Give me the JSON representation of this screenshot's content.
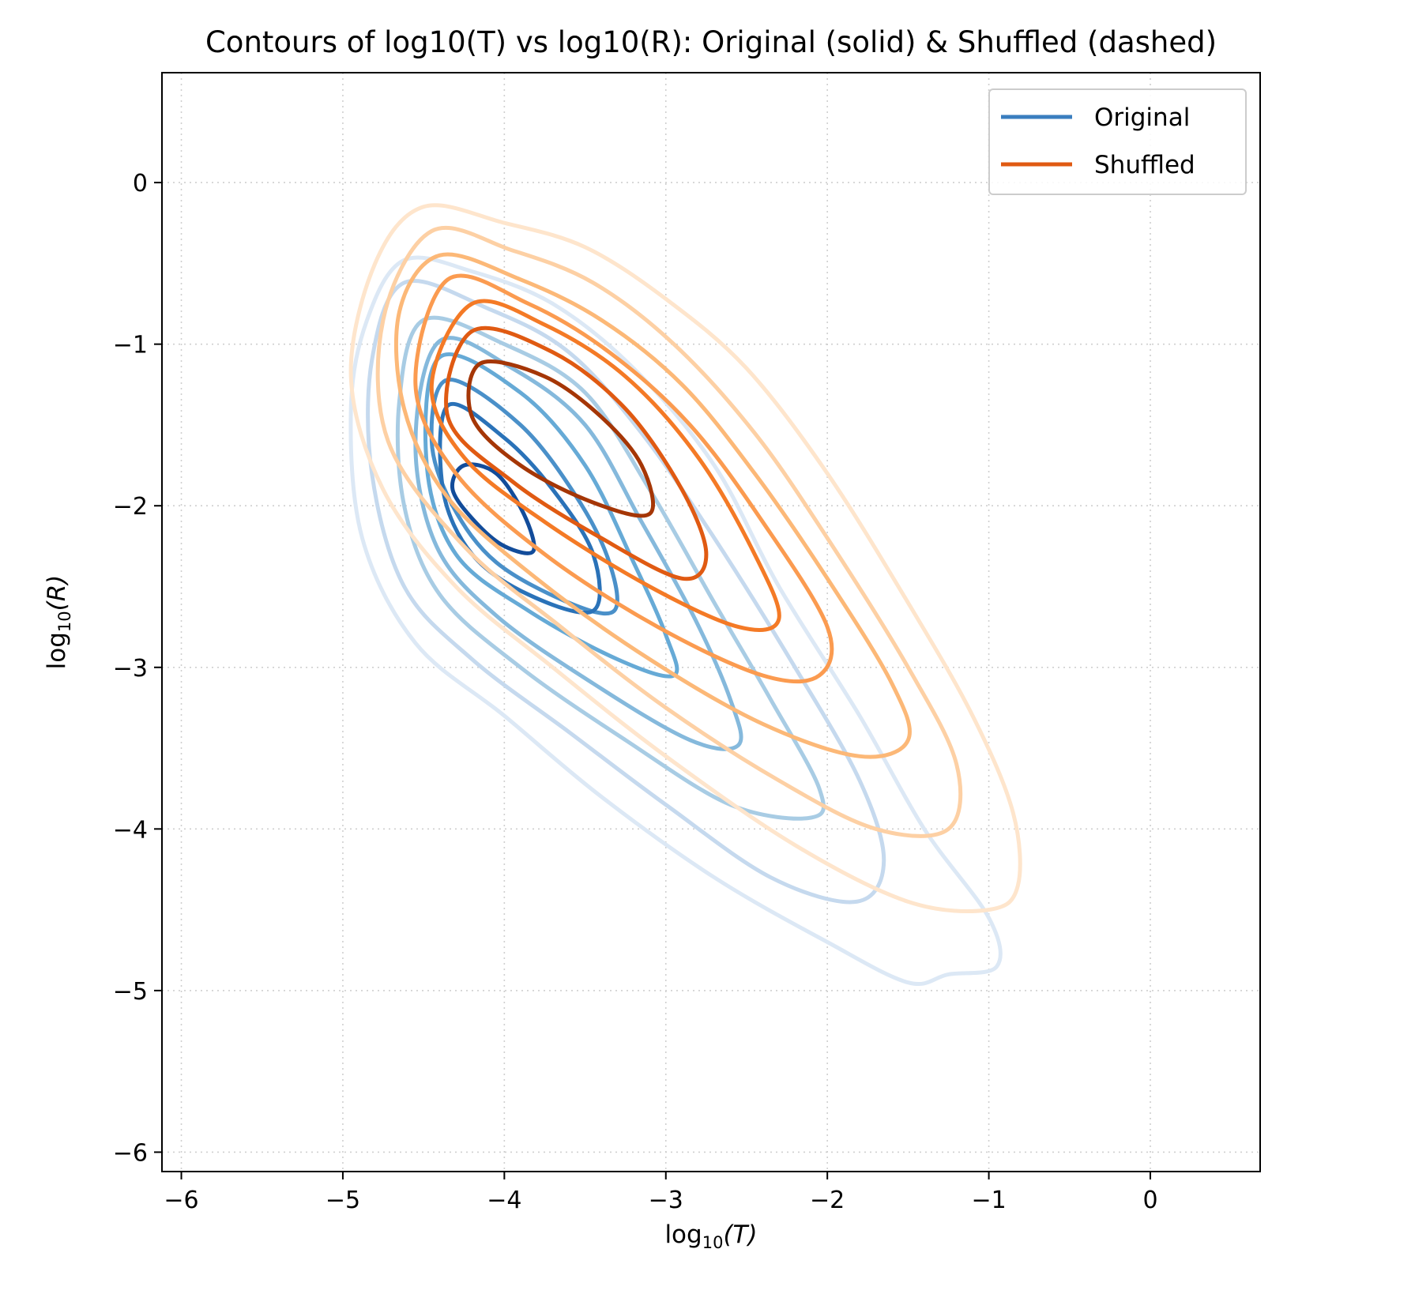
{
  "chart_data": {
    "type": "contour",
    "title": "Contours of log10(T) vs log10(R): Original (solid) & Shuffled (dashed)",
    "xlabel_base": "log",
    "xlabel_sub": "10",
    "xlabel_var": "(T)",
    "ylabel_base": "log",
    "ylabel_sub": "10",
    "ylabel_var": "(R)",
    "xlim": [
      -6.12,
      0.68
    ],
    "ylim": [
      -6.12,
      0.68
    ],
    "xticks": [
      -6,
      -5,
      -4,
      -3,
      -2,
      -1,
      0
    ],
    "yticks": [
      -6,
      -5,
      -4,
      -3,
      -2,
      -1,
      0
    ],
    "xtick_labels": [
      "−6",
      "−5",
      "−4",
      "−3",
      "−2",
      "−1",
      "0"
    ],
    "ytick_labels": [
      "−6",
      "−5",
      "−4",
      "−3",
      "−2",
      "−1",
      "0"
    ],
    "grid": true,
    "legend_position": "top-right",
    "series": [
      {
        "name": "Original",
        "legend_color": "#3a7ebf",
        "contours": [
          {
            "color": "#dce8f5",
            "points": [
              [
                -4.62,
                -0.48
              ],
              [
                -4.2,
                -0.55
              ],
              [
                -3.7,
                -0.75
              ],
              [
                -3.2,
                -1.15
              ],
              [
                -2.7,
                -1.75
              ],
              [
                -2.3,
                -2.5
              ],
              [
                -1.8,
                -3.3
              ],
              [
                -1.4,
                -4.0
              ],
              [
                -1.0,
                -4.55
              ],
              [
                -0.95,
                -4.85
              ],
              [
                -1.25,
                -4.9
              ],
              [
                -1.5,
                -4.95
              ],
              [
                -2.0,
                -4.7
              ],
              [
                -2.7,
                -4.3
              ],
              [
                -3.4,
                -3.8
              ],
              [
                -4.0,
                -3.3
              ],
              [
                -4.55,
                -2.85
              ],
              [
                -4.88,
                -2.2
              ],
              [
                -4.95,
                -1.4
              ],
              [
                -4.85,
                -0.85
              ]
            ]
          },
          {
            "color": "#c5d9ee",
            "points": [
              [
                -4.62,
                -0.62
              ],
              [
                -4.1,
                -0.78
              ],
              [
                -3.6,
                -1.05
              ],
              [
                -3.15,
                -1.55
              ],
              [
                -2.7,
                -2.2
              ],
              [
                -2.2,
                -3.0
              ],
              [
                -1.8,
                -3.7
              ],
              [
                -1.65,
                -4.2
              ],
              [
                -1.82,
                -4.45
              ],
              [
                -2.35,
                -4.3
              ],
              [
                -3.0,
                -3.85
              ],
              [
                -3.6,
                -3.4
              ],
              [
                -4.2,
                -2.95
              ],
              [
                -4.62,
                -2.5
              ],
              [
                -4.82,
                -1.8
              ],
              [
                -4.82,
                -1.1
              ]
            ]
          },
          {
            "color": "#a8cce4",
            "points": [
              [
                -4.5,
                -0.85
              ],
              [
                -4.0,
                -1.0
              ],
              [
                -3.5,
                -1.3
              ],
              [
                -3.1,
                -1.9
              ],
              [
                -2.7,
                -2.6
              ],
              [
                -2.35,
                -3.2
              ],
              [
                -2.05,
                -3.75
              ],
              [
                -2.1,
                -3.93
              ],
              [
                -2.6,
                -3.85
              ],
              [
                -3.25,
                -3.45
              ],
              [
                -3.9,
                -3.0
              ],
              [
                -4.4,
                -2.55
              ],
              [
                -4.62,
                -2.0
              ],
              [
                -4.65,
                -1.35
              ]
            ]
          },
          {
            "color": "#85b9dc",
            "points": [
              [
                -4.4,
                -0.98
              ],
              [
                -3.95,
                -1.15
              ],
              [
                -3.5,
                -1.5
              ],
              [
                -3.15,
                -2.1
              ],
              [
                -2.82,
                -2.7
              ],
              [
                -2.6,
                -3.2
              ],
              [
                -2.55,
                -3.48
              ],
              [
                -2.85,
                -3.45
              ],
              [
                -3.45,
                -3.1
              ],
              [
                -4.05,
                -2.68
              ],
              [
                -4.42,
                -2.25
              ],
              [
                -4.55,
                -1.6
              ]
            ]
          },
          {
            "color": "#66aad6",
            "points": [
              [
                -4.4,
                -1.08
              ],
              [
                -3.9,
                -1.3
              ],
              [
                -3.5,
                -1.75
              ],
              [
                -3.2,
                -2.35
              ],
              [
                -3.0,
                -2.8
              ],
              [
                -2.95,
                -3.05
              ],
              [
                -3.3,
                -2.95
              ],
              [
                -3.85,
                -2.65
              ],
              [
                -4.3,
                -2.3
              ],
              [
                -4.48,
                -1.75
              ]
            ]
          },
          {
            "color": "#4a90c9",
            "points": [
              [
                -4.35,
                -1.22
              ],
              [
                -3.9,
                -1.5
              ],
              [
                -3.55,
                -1.95
              ],
              [
                -3.35,
                -2.35
              ],
              [
                -3.32,
                -2.65
              ],
              [
                -3.6,
                -2.6
              ],
              [
                -4.05,
                -2.35
              ],
              [
                -4.32,
                -2.0
              ],
              [
                -4.45,
                -1.6
              ]
            ]
          },
          {
            "color": "#2a72b8",
            "points": [
              [
                -4.35,
                -1.38
              ],
              [
                -4.0,
                -1.58
              ],
              [
                -3.7,
                -1.9
              ],
              [
                -3.45,
                -2.3
              ],
              [
                -3.45,
                -2.65
              ],
              [
                -3.85,
                -2.55
              ],
              [
                -4.2,
                -2.3
              ],
              [
                -4.38,
                -1.9
              ]
            ]
          },
          {
            "color": "#124c9a",
            "points": [
              [
                -4.25,
                -1.75
              ],
              [
                -4.05,
                -1.8
              ],
              [
                -3.88,
                -2.05
              ],
              [
                -3.82,
                -2.28
              ],
              [
                -4.0,
                -2.25
              ],
              [
                -4.18,
                -2.1
              ],
              [
                -4.32,
                -1.9
              ]
            ]
          }
        ]
      },
      {
        "name": "Shuffled",
        "legend_color": "#e05a12",
        "contours": [
          {
            "color": "#fee5cc",
            "points": [
              [
                -4.5,
                -0.15
              ],
              [
                -4.0,
                -0.25
              ],
              [
                -3.5,
                -0.4
              ],
              [
                -3.0,
                -0.72
              ],
              [
                -2.5,
                -1.15
              ],
              [
                -2.0,
                -1.8
              ],
              [
                -1.5,
                -2.6
              ],
              [
                -1.1,
                -3.3
              ],
              [
                -0.85,
                -3.9
              ],
              [
                -0.82,
                -4.35
              ],
              [
                -1.0,
                -4.5
              ],
              [
                -1.5,
                -4.45
              ],
              [
                -2.2,
                -4.1
              ],
              [
                -3.0,
                -3.55
              ],
              [
                -3.7,
                -3.0
              ],
              [
                -4.3,
                -2.5
              ],
              [
                -4.75,
                -1.9
              ],
              [
                -4.95,
                -1.2
              ],
              [
                -4.8,
                -0.5
              ]
            ]
          },
          {
            "color": "#fdd0a4",
            "points": [
              [
                -4.45,
                -0.3
              ],
              [
                -3.95,
                -0.42
              ],
              [
                -3.45,
                -0.62
              ],
              [
                -2.95,
                -1.0
              ],
              [
                -2.45,
                -1.55
              ],
              [
                -2.0,
                -2.2
              ],
              [
                -1.5,
                -3.0
              ],
              [
                -1.2,
                -3.6
              ],
              [
                -1.25,
                -4.0
              ],
              [
                -1.7,
                -4.0
              ],
              [
                -2.3,
                -3.7
              ],
              [
                -3.0,
                -3.25
              ],
              [
                -3.65,
                -2.75
              ],
              [
                -4.25,
                -2.25
              ],
              [
                -4.72,
                -1.6
              ],
              [
                -4.75,
                -0.85
              ]
            ]
          },
          {
            "color": "#fcb877",
            "points": [
              [
                -4.4,
                -0.45
              ],
              [
                -3.9,
                -0.6
              ],
              [
                -3.4,
                -0.85
              ],
              [
                -2.9,
                -1.25
              ],
              [
                -2.45,
                -1.8
              ],
              [
                -2.0,
                -2.45
              ],
              [
                -1.6,
                -3.1
              ],
              [
                -1.5,
                -3.45
              ],
              [
                -1.8,
                -3.55
              ],
              [
                -2.4,
                -3.35
              ],
              [
                -3.1,
                -2.95
              ],
              [
                -3.8,
                -2.45
              ],
              [
                -4.35,
                -1.95
              ],
              [
                -4.62,
                -1.4
              ],
              [
                -4.65,
                -0.8
              ]
            ]
          },
          {
            "color": "#fb9b50",
            "points": [
              [
                -4.35,
                -0.6
              ],
              [
                -3.85,
                -0.75
              ],
              [
                -3.35,
                -1.05
              ],
              [
                -2.85,
                -1.5
              ],
              [
                -2.4,
                -2.1
              ],
              [
                -2.0,
                -2.75
              ],
              [
                -2.05,
                -3.05
              ],
              [
                -2.4,
                -3.05
              ],
              [
                -3.05,
                -2.75
              ],
              [
                -3.75,
                -2.3
              ],
              [
                -4.3,
                -1.8
              ],
              [
                -4.55,
                -1.25
              ]
            ]
          },
          {
            "color": "#f47a26",
            "points": [
              [
                -4.2,
                -0.75
              ],
              [
                -3.75,
                -0.88
              ],
              [
                -3.25,
                -1.2
              ],
              [
                -2.8,
                -1.7
              ],
              [
                -2.45,
                -2.3
              ],
              [
                -2.3,
                -2.7
              ],
              [
                -2.55,
                -2.75
              ],
              [
                -3.1,
                -2.5
              ],
              [
                -3.75,
                -2.1
              ],
              [
                -4.25,
                -1.7
              ],
              [
                -4.45,
                -1.25
              ]
            ]
          },
          {
            "color": "#e05a12",
            "points": [
              [
                -4.2,
                -0.92
              ],
              [
                -3.7,
                -1.05
              ],
              [
                -3.25,
                -1.4
              ],
              [
                -2.9,
                -1.9
              ],
              [
                -2.75,
                -2.3
              ],
              [
                -2.9,
                -2.45
              ],
              [
                -3.4,
                -2.2
              ],
              [
                -3.95,
                -1.85
              ],
              [
                -4.35,
                -1.45
              ]
            ]
          },
          {
            "color": "#a53606",
            "points": [
              [
                -4.15,
                -1.12
              ],
              [
                -3.75,
                -1.2
              ],
              [
                -3.4,
                -1.45
              ],
              [
                -3.15,
                -1.75
              ],
              [
                -3.1,
                -2.05
              ],
              [
                -3.45,
                -1.98
              ],
              [
                -3.9,
                -1.75
              ],
              [
                -4.2,
                -1.45
              ]
            ]
          }
        ]
      }
    ]
  }
}
